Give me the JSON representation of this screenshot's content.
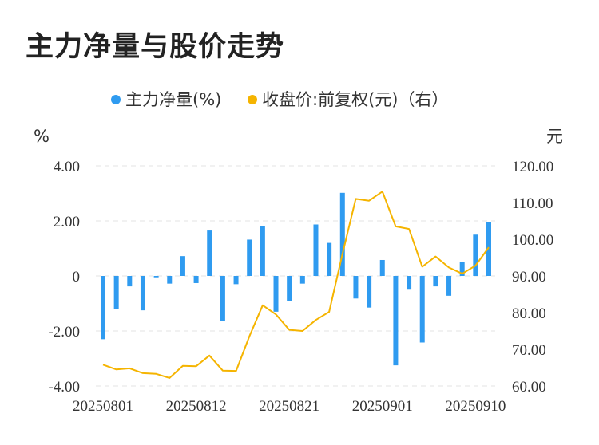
{
  "title": "主力净量与股价走势",
  "chart_data": {
    "type": "bar+line",
    "legend": {
      "placement": "top-center",
      "entries": [
        {
          "name": "主力净量(%)",
          "color": "#2f9bf0",
          "marker": "dot"
        },
        {
          "name": "收盘价:前复权(元)（右）",
          "color": "#f5b400",
          "marker": "dot"
        }
      ]
    },
    "left_axis": {
      "unit": "%",
      "ylim": [
        -4,
        4
      ],
      "ticks": [
        "4.00",
        "2.00",
        "0",
        "-2.00",
        "-4.00"
      ],
      "tick_values": [
        4,
        2,
        0,
        -2,
        -4
      ]
    },
    "right_axis": {
      "unit": "元",
      "ylim": [
        60,
        120
      ],
      "ticks": [
        "120.00",
        "110.00",
        "100.00",
        "90.00",
        "80.00",
        "70.00",
        "60.00"
      ],
      "tick_values": [
        120,
        110,
        100,
        90,
        80,
        70,
        60
      ]
    },
    "x_tick_labels": [
      "20250801",
      "20250812",
      "20250821",
      "20250901",
      "20250910"
    ],
    "x_tick_indices": [
      0,
      7,
      14,
      21,
      28
    ],
    "grid": "horizontal-dashed",
    "series": [
      {
        "name": "主力净量(%)",
        "type": "bar",
        "axis": "left",
        "color": "#2f9bf0",
        "values": [
          -2.3,
          -1.2,
          -0.38,
          -1.25,
          -0.05,
          -0.28,
          0.72,
          -0.26,
          1.65,
          -1.65,
          -0.3,
          1.32,
          1.8,
          -1.3,
          -0.9,
          -0.28,
          1.87,
          1.2,
          3.02,
          -0.82,
          -1.15,
          0.58,
          -3.25,
          -0.5,
          -2.42,
          -0.38,
          -0.72,
          0.5,
          1.5,
          1.95
        ]
      },
      {
        "name": "收盘价:前复权(元)（右）",
        "type": "line",
        "axis": "right",
        "color": "#f5b400",
        "values": [
          65.8,
          64.5,
          64.8,
          63.5,
          63.3,
          62.2,
          65.5,
          65.4,
          68.3,
          64.2,
          64.1,
          73.5,
          82.0,
          79.5,
          75.3,
          75.0,
          78.0,
          80.2,
          96.0,
          111.0,
          110.5,
          113.0,
          103.5,
          102.8,
          92.5,
          95.3,
          92.3,
          90.6,
          92.8,
          97.8
        ]
      }
    ]
  }
}
